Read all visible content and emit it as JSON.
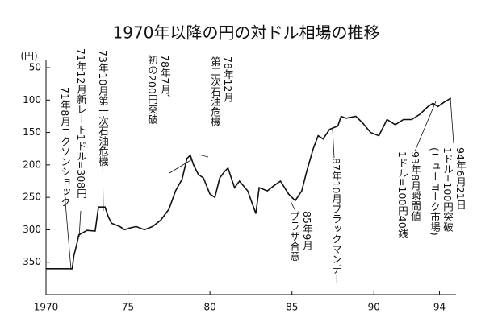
{
  "chart_data": {
    "type": "line",
    "title": "1970年以降の円の対ドル相場の推移",
    "y_label": "(円)",
    "xlim": [
      1970,
      1995.5
    ],
    "xticks": [
      1970,
      {
        "value": 1975,
        "label": "75"
      },
      {
        "value": 1980,
        "label": "80"
      },
      {
        "value": 1985,
        "label": "85"
      },
      {
        "value": 1990,
        "label": "90"
      },
      {
        "value": 1994,
        "label": "94"
      }
    ],
    "ylim": [
      400,
      45
    ],
    "yticks": [
      50,
      100,
      150,
      200,
      250,
      300,
      350
    ],
    "series": [
      {
        "color": "#111111",
        "x": [
          1970,
          1971.6,
          1971.7,
          1971.9,
          1972.0,
          1972.5,
          1973.0,
          1973.2,
          1973.6,
          1973.8,
          1974.0,
          1974.5,
          1974.8,
          1975.0,
          1975.5,
          1976.0,
          1976.5,
          1977.0,
          1977.5,
          1977.9,
          1978.3,
          1978.6,
          1978.8,
          1979.0,
          1979.3,
          1979.6,
          1980.0,
          1980.3,
          1980.6,
          1980.9,
          1981.1,
          1981.5,
          1981.8,
          1982.3,
          1982.8,
          1983.0,
          1983.5,
          1983.9,
          1984.3,
          1984.8,
          1985.2,
          1985.6,
          1985.9,
          1986.3,
          1986.6,
          1986.9,
          1987.3,
          1987.8,
          1988.0,
          1988.3,
          1988.9,
          1989.3,
          1989.8,
          1990.3,
          1990.8,
          1991.3,
          1991.8,
          1992.3,
          1992.8,
          1993.3,
          1993.6,
          1993.9,
          1994.3,
          1994.5,
          1994.7
        ],
        "values": [
          360,
          360,
          340,
          320,
          308,
          301,
          302,
          265,
          265,
          280,
          290,
          295,
          300,
          298,
          295,
          300,
          295,
          285,
          268,
          240,
          222,
          190,
          185,
          200,
          215,
          220,
          245,
          250,
          220,
          210,
          205,
          235,
          225,
          240,
          275,
          235,
          240,
          232,
          225,
          245,
          255,
          240,
          210,
          175,
          155,
          160,
          145,
          140,
          125,
          128,
          125,
          135,
          150,
          155,
          130,
          138,
          130,
          130,
          122,
          110,
          105,
          110,
          103,
          100,
          97
        ]
      }
    ],
    "annotations": [
      {
        "lines": [
          "71年8月ニクソンショック"
        ]
      },
      {
        "lines": [
          "71年12月新レート1ドル=308円"
        ]
      },
      {
        "lines": [
          "73年10月第一次石油危機"
        ]
      },
      {
        "lines": [
          "78年7月、",
          "初の200円突破"
        ]
      },
      {
        "lines": [
          "78年12月",
          "第二次石油危機"
        ]
      },
      {
        "lines": [
          "85年9月",
          "プラザ合意"
        ]
      },
      {
        "lines": [
          "87年10月ブラックマンデー"
        ]
      },
      {
        "lines": [
          "93年8月瞬間値",
          "1ドル=100円40銭"
        ]
      },
      {
        "lines": [
          "94年6月21日",
          "1ドル=100円突破",
          "(ニューヨーク市場)"
        ]
      }
    ]
  }
}
